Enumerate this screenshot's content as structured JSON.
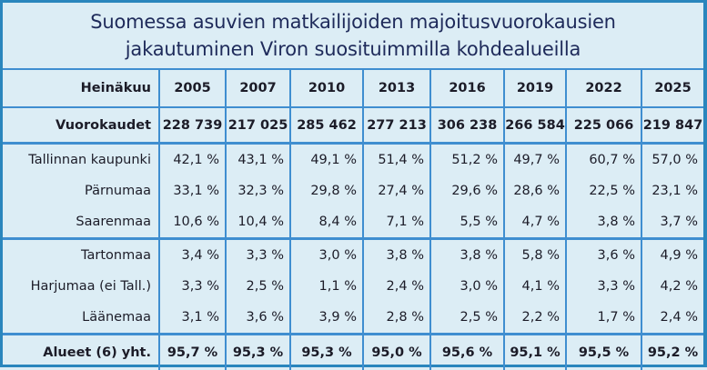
{
  "title": {
    "line1": "Suomessa asuvien matkailijoiden majoitusvuorokausien",
    "line2": "jakautuminen Viron suosituimmilla kohdealueilla"
  },
  "table": {
    "header_label": "Heinäkuu",
    "years": [
      "2005",
      "2007",
      "2010",
      "2013",
      "2016",
      "2019",
      "2022",
      "2025"
    ],
    "nights_label": "Vuorokaudet",
    "nights": [
      "228 739",
      "217 025",
      "285 462",
      "277 213",
      "306 238",
      "266 584",
      "225 066",
      "219 847"
    ],
    "regions": [
      {
        "name": "Tallinnan kaupunki",
        "values": [
          "42,1 %",
          "43,1 %",
          "49,1 %",
          "51,4 %",
          "51,2 %",
          "49,7 %",
          "60,7 %",
          "57,0 %"
        ]
      },
      {
        "name": "Pärnumaa",
        "values": [
          "33,1 %",
          "32,3 %",
          "29,8 %",
          "27,4 %",
          "29,6 %",
          "28,6 %",
          "22,5 %",
          "23,1 %"
        ]
      },
      {
        "name": "Saarenmaa",
        "values": [
          "10,6 %",
          "10,4 %",
          "8,4 %",
          "7,1 %",
          "5,5 %",
          "4,7 %",
          "3,8 %",
          "3,7 %"
        ]
      },
      {
        "name": "Tartonmaa",
        "values": [
          "3,4 %",
          "3,3 %",
          "3,0 %",
          "3,8 %",
          "3,8 %",
          "5,8 %",
          "3,6 %",
          "4,9 %"
        ]
      },
      {
        "name": "Harjumaa (ei Tall.)",
        "values": [
          "3,3 %",
          "2,5 %",
          "1,1 %",
          "2,4 %",
          "3,0 %",
          "4,1 %",
          "3,3 %",
          "4,2 %"
        ]
      },
      {
        "name": "Läänemaa",
        "values": [
          "3,1 %",
          "3,6 %",
          "3,9 %",
          "2,8 %",
          "2,5 %",
          "2,2 %",
          "1,7 %",
          "2,4 %"
        ]
      }
    ],
    "total_label": "Alueet (6) yht.",
    "totals": [
      "95,7 %",
      "95,3 %",
      "95,3 %",
      "95,0 %",
      "95,6 %",
      "95,1 %",
      "95,5 %",
      "95,2 %"
    ]
  },
  "colors": {
    "background": "#dcedf5",
    "border": "#2a86bd",
    "grid": "#3f8ed0",
    "title_text": "#1e2a5a"
  },
  "chart_data": {
    "type": "table",
    "title": "Suomessa asuvien matkailijoiden majoitusvuorokausien jakautuminen Viron suosituimmilla kohdealueilla",
    "columns": [
      "Heinäkuu",
      "2005",
      "2007",
      "2010",
      "2013",
      "2016",
      "2019",
      "2022",
      "2025"
    ],
    "rows": [
      [
        "Vuorokaudet",
        228739,
        217025,
        285462,
        277213,
        306238,
        266584,
        225066,
        219847
      ],
      [
        "Tallinnan kaupunki",
        42.1,
        43.1,
        49.1,
        51.4,
        51.2,
        49.7,
        60.7,
        57.0
      ],
      [
        "Pärnumaa",
        33.1,
        32.3,
        29.8,
        27.4,
        29.6,
        28.6,
        22.5,
        23.1
      ],
      [
        "Saarenmaa",
        10.6,
        10.4,
        8.4,
        7.1,
        5.5,
        4.7,
        3.8,
        3.7
      ],
      [
        "Tartonmaa",
        3.4,
        3.3,
        3.0,
        3.8,
        3.8,
        5.8,
        3.6,
        4.9
      ],
      [
        "Harjumaa (ei Tall.)",
        3.3,
        2.5,
        1.1,
        2.4,
        3.0,
        4.1,
        3.3,
        4.2
      ],
      [
        "Läänemaa",
        3.1,
        3.6,
        3.9,
        2.8,
        2.5,
        2.2,
        1.7,
        2.4
      ],
      [
        "Alueet (6) yht.",
        95.7,
        95.3,
        95.3,
        95.0,
        95.6,
        95.1,
        95.5,
        95.2
      ]
    ],
    "units": "% of nights (except Vuorokaudet = count)"
  }
}
